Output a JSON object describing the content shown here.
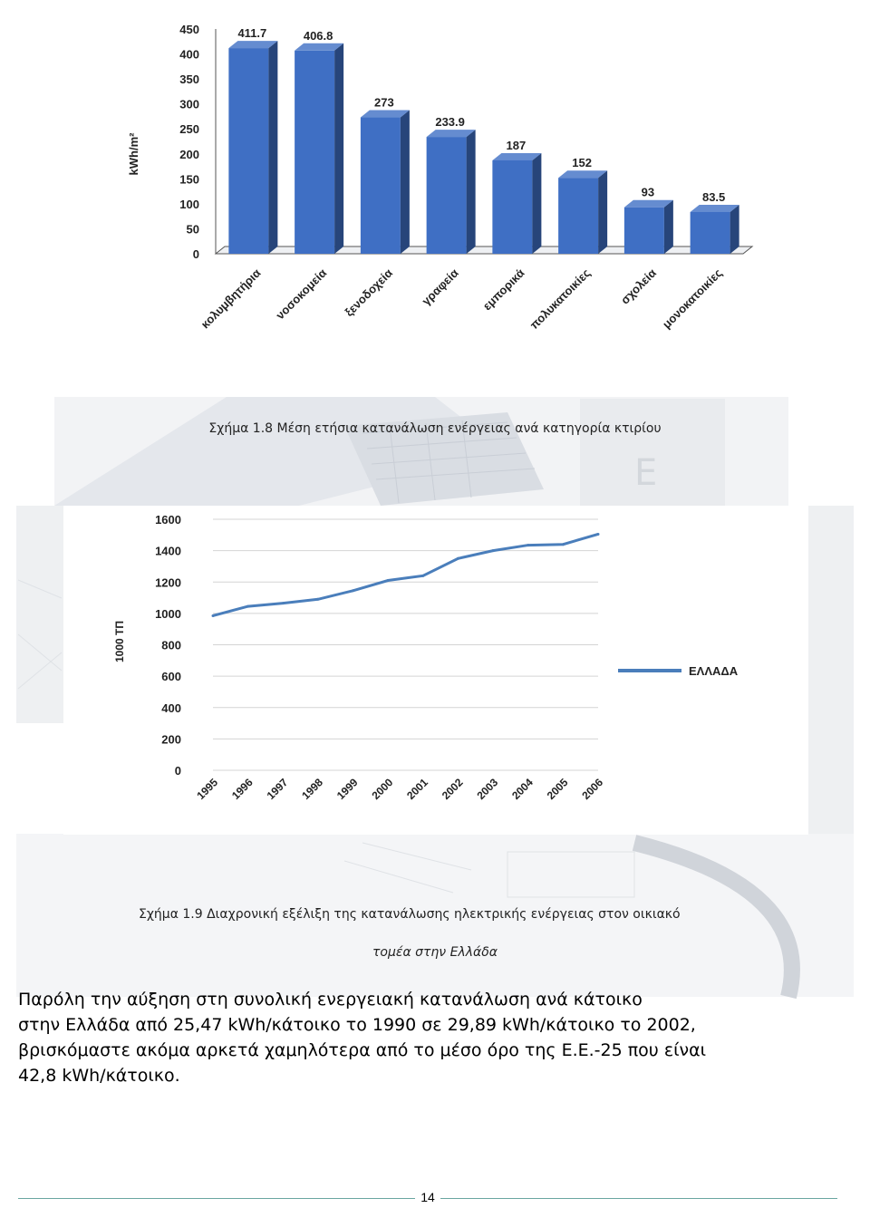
{
  "figure1": {
    "caption": "Σχήμα 1.8 Μέση ετήσια κατανάλωση ενέργειας ανά κατηγορία κτιρίου",
    "chart_data": {
      "type": "bar",
      "ylabel": "kWh/m²",
      "ylim": [
        0,
        450
      ],
      "yticks": [
        "0",
        "50",
        "100",
        "150",
        "200",
        "250",
        "300",
        "350",
        "400",
        "450"
      ],
      "categories": [
        "κολυμβητήρια",
        "νοσοκομεία",
        "ξενοδοχεία",
        "γραφεία",
        "εμπορικά",
        "πολυκατοικίες",
        "σχολεία",
        "μονοκατοικίες"
      ],
      "values": [
        411.7,
        406.8,
        273,
        233.9,
        187,
        152,
        93,
        83.5
      ],
      "value_labels": [
        "411.7",
        "406.8",
        "273",
        "233.9",
        "187",
        "152",
        "93",
        "83.5"
      ],
      "bar_color": "#3f6fc4"
    }
  },
  "figure2": {
    "caption_line1": "Σχήμα 1.9 Διαχρονική εξέλιξη της κατανάλωσης ηλεκτρικής ενέργειας στον οικιακό",
    "caption_line2": "τομέα στην Ελλάδα",
    "chart_data": {
      "type": "line",
      "ylabel": "1000 ΤΠ",
      "ylim": [
        0,
        1600
      ],
      "yticks": [
        "0",
        "200",
        "400",
        "600",
        "800",
        "1000",
        "1200",
        "1400",
        "1600"
      ],
      "x": [
        "1995",
        "1996",
        "1997",
        "1998",
        "1999",
        "2000",
        "2001",
        "2002",
        "2003",
        "2004",
        "2005",
        "2006"
      ],
      "series": [
        {
          "name": "ΕΛΛΑΔΑ",
          "values": [
            985,
            1045,
            1065,
            1090,
            1145,
            1210,
            1240,
            1350,
            1400,
            1435,
            1440,
            1505
          ]
        }
      ],
      "line_color": "#4a7ebb",
      "legend": "right"
    }
  },
  "paragraph": {
    "lines": [
      "Παρόλη την αύξηση στη συνολική ενεργειακή κατανάλωση ανά κάτοικο",
      "στην Ελλάδα από 25,47 kWh/κάτοικο το 1990 σε 29,89 kWh/κάτοικο το 2002,",
      "βρισκόμαστε ακόμα αρκετά χαμηλότερα από το μέσο όρο της Ε.Ε.-25 που είναι",
      "42,8 kWh/κάτοικο."
    ]
  },
  "footer": {
    "page_number": "14"
  }
}
